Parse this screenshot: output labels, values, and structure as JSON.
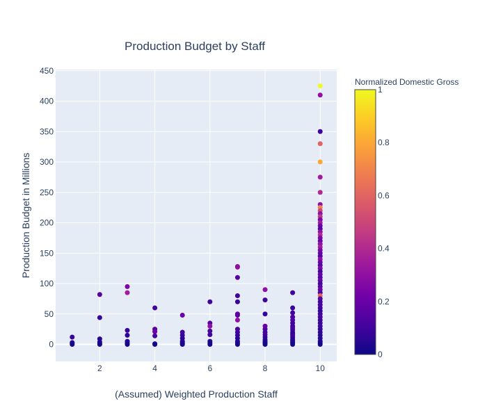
{
  "chart_data": {
    "type": "scatter",
    "title": "Production Budget by Staff",
    "xlabel": "(Assumed) Weighted Production Staff",
    "ylabel": "Production Budget in Millions",
    "xlim": [
      0.4,
      10.6
    ],
    "ylim": [
      -28,
      452
    ],
    "x_ticks": [
      2,
      4,
      6,
      8,
      10
    ],
    "y_ticks": [
      0,
      50,
      100,
      150,
      200,
      250,
      300,
      350,
      400,
      450
    ],
    "grid": true,
    "colorbar": {
      "title": "Normalized Domestic Gross",
      "range": [
        0,
        1
      ],
      "ticks": [
        0,
        0.2,
        0.4,
        0.6,
        0.8,
        1
      ],
      "tick_labels": [
        "0",
        "0.2",
        "0.4",
        "0.6",
        "0.8",
        "1"
      ],
      "colors": [
        "#0d0887",
        "#46039f",
        "#7201a8",
        "#9c179e",
        "#bd3786",
        "#d8576b",
        "#ed7953",
        "#fb9f3a",
        "#fdca26",
        "#f0f921"
      ]
    },
    "points": [
      {
        "x": 1,
        "y": 12,
        "c": 0.08
      },
      {
        "x": 1,
        "y": 3,
        "c": 0.05
      },
      {
        "x": 1,
        "y": 1,
        "c": 0.03
      },
      {
        "x": 1,
        "y": 0,
        "c": 0.02
      },
      {
        "x": 2,
        "y": 82,
        "c": 0.15
      },
      {
        "x": 2,
        "y": 44,
        "c": 0.08
      },
      {
        "x": 2,
        "y": 9,
        "c": 0.05
      },
      {
        "x": 2,
        "y": 4,
        "c": 0.04
      },
      {
        "x": 2,
        "y": 1,
        "c": 0.03
      },
      {
        "x": 2,
        "y": 0,
        "c": 0.02
      },
      {
        "x": 3,
        "y": 95,
        "c": 0.25
      },
      {
        "x": 3,
        "y": 85,
        "c": 0.35
      },
      {
        "x": 3,
        "y": 23,
        "c": 0.08
      },
      {
        "x": 3,
        "y": 15,
        "c": 0.06
      },
      {
        "x": 3,
        "y": 5,
        "c": 0.05
      },
      {
        "x": 3,
        "y": 2,
        "c": 0.04
      },
      {
        "x": 3,
        "y": 0,
        "c": 0.02
      },
      {
        "x": 4,
        "y": 60,
        "c": 0.1
      },
      {
        "x": 4,
        "y": 25,
        "c": 0.15
      },
      {
        "x": 4,
        "y": 21,
        "c": 0.2
      },
      {
        "x": 4,
        "y": 14,
        "c": 0.12
      },
      {
        "x": 4,
        "y": 1,
        "c": 0.04
      },
      {
        "x": 4,
        "y": 0,
        "c": 0.02
      },
      {
        "x": 5,
        "y": 48,
        "c": 0.2
      },
      {
        "x": 5,
        "y": 20,
        "c": 0.1
      },
      {
        "x": 5,
        "y": 15,
        "c": 0.08
      },
      {
        "x": 5,
        "y": 10,
        "c": 0.06
      },
      {
        "x": 5,
        "y": 5,
        "c": 0.05
      },
      {
        "x": 5,
        "y": 3,
        "c": 0.04
      },
      {
        "x": 5,
        "y": 1,
        "c": 0.03
      },
      {
        "x": 5,
        "y": 0,
        "c": 0.02
      },
      {
        "x": 6,
        "y": 70,
        "c": 0.1
      },
      {
        "x": 6,
        "y": 35,
        "c": 0.15
      },
      {
        "x": 6,
        "y": 30,
        "c": 0.3
      },
      {
        "x": 6,
        "y": 22,
        "c": 0.12
      },
      {
        "x": 6,
        "y": 16,
        "c": 0.1
      },
      {
        "x": 6,
        "y": 5,
        "c": 0.05
      },
      {
        "x": 6,
        "y": 2,
        "c": 0.04
      },
      {
        "x": 6,
        "y": 0,
        "c": 0.02
      },
      {
        "x": 7,
        "y": 128,
        "c": 0.25
      },
      {
        "x": 7,
        "y": 127,
        "c": 0.3
      },
      {
        "x": 7,
        "y": 110,
        "c": 0.15
      },
      {
        "x": 7,
        "y": 80,
        "c": 0.1
      },
      {
        "x": 7,
        "y": 70,
        "c": 0.08
      },
      {
        "x": 7,
        "y": 50,
        "c": 0.2
      },
      {
        "x": 7,
        "y": 48,
        "c": 0.15
      },
      {
        "x": 7,
        "y": 40,
        "c": 0.3
      },
      {
        "x": 7,
        "y": 25,
        "c": 0.12
      },
      {
        "x": 7,
        "y": 20,
        "c": 0.1
      },
      {
        "x": 7,
        "y": 15,
        "c": 0.08
      },
      {
        "x": 7,
        "y": 10,
        "c": 0.06
      },
      {
        "x": 7,
        "y": 5,
        "c": 0.05
      },
      {
        "x": 7,
        "y": 2,
        "c": 0.04
      },
      {
        "x": 7,
        "y": 0,
        "c": 0.02
      },
      {
        "x": 8,
        "y": 90,
        "c": 0.3
      },
      {
        "x": 8,
        "y": 73,
        "c": 0.1
      },
      {
        "x": 8,
        "y": 50,
        "c": 0.08
      },
      {
        "x": 8,
        "y": 30,
        "c": 0.2
      },
      {
        "x": 8,
        "y": 25,
        "c": 0.15
      },
      {
        "x": 8,
        "y": 20,
        "c": 0.1
      },
      {
        "x": 8,
        "y": 16,
        "c": 0.12
      },
      {
        "x": 8,
        "y": 12,
        "c": 0.08
      },
      {
        "x": 8,
        "y": 8,
        "c": 0.06
      },
      {
        "x": 8,
        "y": 5,
        "c": 0.05
      },
      {
        "x": 8,
        "y": 3,
        "c": 0.04
      },
      {
        "x": 8,
        "y": 1,
        "c": 0.03
      },
      {
        "x": 8,
        "y": 0,
        "c": 0.02
      },
      {
        "x": 9,
        "y": 85,
        "c": 0.1
      },
      {
        "x": 9,
        "y": 60,
        "c": 0.08
      },
      {
        "x": 9,
        "y": 52,
        "c": 0.1
      },
      {
        "x": 9,
        "y": 45,
        "c": 0.12
      },
      {
        "x": 9,
        "y": 40,
        "c": 0.15
      },
      {
        "x": 9,
        "y": 35,
        "c": 0.1
      },
      {
        "x": 9,
        "y": 30,
        "c": 0.08
      },
      {
        "x": 9,
        "y": 27,
        "c": 0.12
      },
      {
        "x": 9,
        "y": 24,
        "c": 0.1
      },
      {
        "x": 9,
        "y": 20,
        "c": 0.08
      },
      {
        "x": 9,
        "y": 17,
        "c": 0.06
      },
      {
        "x": 9,
        "y": 14,
        "c": 0.1
      },
      {
        "x": 9,
        "y": 11,
        "c": 0.08
      },
      {
        "x": 9,
        "y": 8,
        "c": 0.06
      },
      {
        "x": 9,
        "y": 6,
        "c": 0.05
      },
      {
        "x": 9,
        "y": 4,
        "c": 0.04
      },
      {
        "x": 9,
        "y": 2,
        "c": 0.03
      },
      {
        "x": 9,
        "y": 0,
        "c": 0.02
      },
      {
        "x": 10,
        "y": 425,
        "c": 1.0
      },
      {
        "x": 10,
        "y": 410,
        "c": 0.3
      },
      {
        "x": 10,
        "y": 350,
        "c": 0.1
      },
      {
        "x": 10,
        "y": 330,
        "c": 0.6
      },
      {
        "x": 10,
        "y": 300,
        "c": 0.8
      },
      {
        "x": 10,
        "y": 275,
        "c": 0.35
      },
      {
        "x": 10,
        "y": 250,
        "c": 0.4
      },
      {
        "x": 10,
        "y": 230,
        "c": 0.3
      },
      {
        "x": 10,
        "y": 225,
        "c": 0.7
      },
      {
        "x": 10,
        "y": 220,
        "c": 0.5
      },
      {
        "x": 10,
        "y": 215,
        "c": 0.3
      },
      {
        "x": 10,
        "y": 210,
        "c": 0.45
      },
      {
        "x": 10,
        "y": 205,
        "c": 0.25
      },
      {
        "x": 10,
        "y": 200,
        "c": 0.35
      },
      {
        "x": 10,
        "y": 195,
        "c": 0.2
      },
      {
        "x": 10,
        "y": 190,
        "c": 0.15
      },
      {
        "x": 10,
        "y": 185,
        "c": 0.3
      },
      {
        "x": 10,
        "y": 180,
        "c": 0.4
      },
      {
        "x": 10,
        "y": 175,
        "c": 0.25
      },
      {
        "x": 10,
        "y": 170,
        "c": 0.2
      },
      {
        "x": 10,
        "y": 165,
        "c": 0.3
      },
      {
        "x": 10,
        "y": 160,
        "c": 0.35
      },
      {
        "x": 10,
        "y": 155,
        "c": 0.25
      },
      {
        "x": 10,
        "y": 150,
        "c": 0.2
      },
      {
        "x": 10,
        "y": 145,
        "c": 0.15
      },
      {
        "x": 10,
        "y": 140,
        "c": 0.3
      },
      {
        "x": 10,
        "y": 135,
        "c": 0.2
      },
      {
        "x": 10,
        "y": 130,
        "c": 0.15
      },
      {
        "x": 10,
        "y": 125,
        "c": 0.25
      },
      {
        "x": 10,
        "y": 120,
        "c": 0.1
      },
      {
        "x": 10,
        "y": 115,
        "c": 0.2
      },
      {
        "x": 10,
        "y": 110,
        "c": 0.15
      },
      {
        "x": 10,
        "y": 105,
        "c": 0.2
      },
      {
        "x": 10,
        "y": 100,
        "c": 0.1
      },
      {
        "x": 10,
        "y": 95,
        "c": 0.15
      },
      {
        "x": 10,
        "y": 90,
        "c": 0.2
      },
      {
        "x": 10,
        "y": 85,
        "c": 0.12
      },
      {
        "x": 10,
        "y": 80,
        "c": 0.6
      },
      {
        "x": 10,
        "y": 75,
        "c": 0.15
      },
      {
        "x": 10,
        "y": 70,
        "c": 0.1
      },
      {
        "x": 10,
        "y": 65,
        "c": 0.12
      },
      {
        "x": 10,
        "y": 60,
        "c": 0.1
      },
      {
        "x": 10,
        "y": 55,
        "c": 0.08
      },
      {
        "x": 10,
        "y": 50,
        "c": 0.1
      },
      {
        "x": 10,
        "y": 45,
        "c": 0.12
      },
      {
        "x": 10,
        "y": 40,
        "c": 0.1
      },
      {
        "x": 10,
        "y": 35,
        "c": 0.08
      },
      {
        "x": 10,
        "y": 30,
        "c": 0.1
      },
      {
        "x": 10,
        "y": 25,
        "c": 0.08
      },
      {
        "x": 10,
        "y": 20,
        "c": 0.06
      },
      {
        "x": 10,
        "y": 15,
        "c": 0.05
      },
      {
        "x": 10,
        "y": 10,
        "c": 0.05
      },
      {
        "x": 10,
        "y": 5,
        "c": 0.04
      },
      {
        "x": 10,
        "y": 2,
        "c": 0.03
      },
      {
        "x": 10,
        "y": 0,
        "c": 0.02
      }
    ]
  }
}
